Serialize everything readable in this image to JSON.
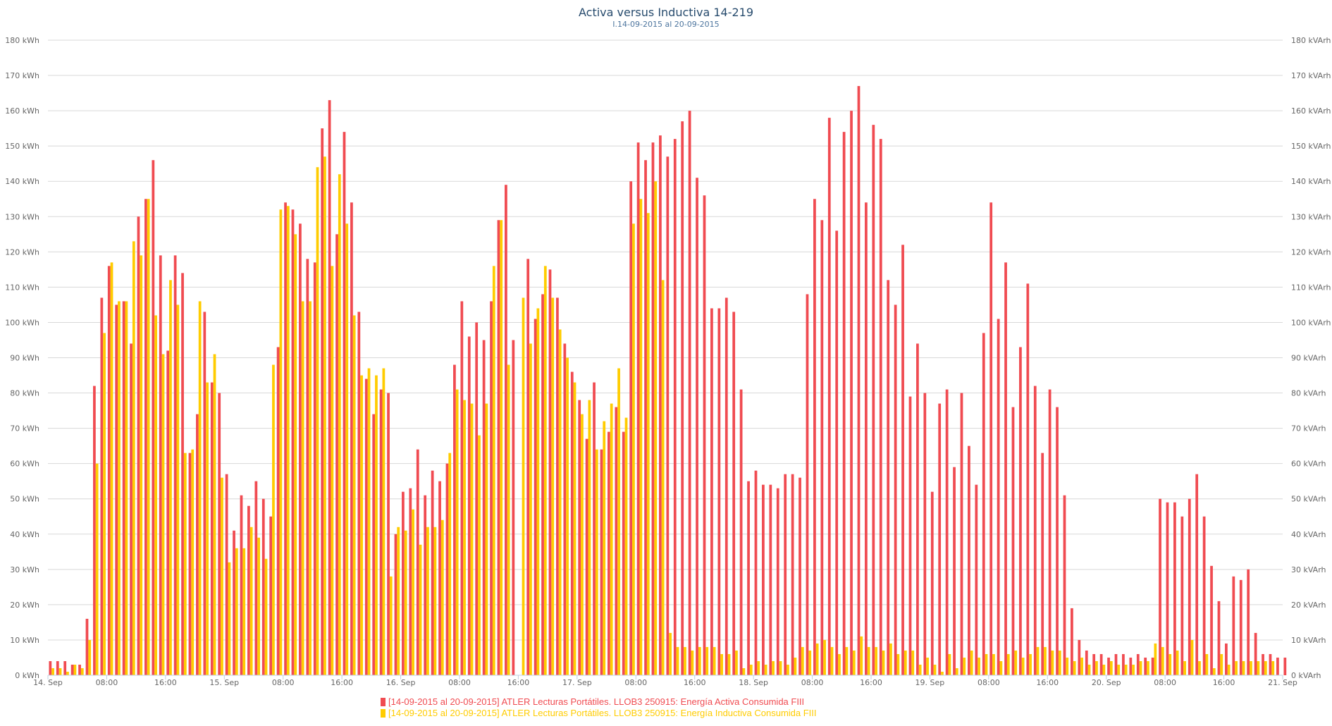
{
  "colors": {
    "active": "#f04b51",
    "inductive": "#ffcc00",
    "grid": "#d8d8d8",
    "axis_text": "#666666"
  },
  "chart_data": {
    "type": "bar",
    "title": "Activa versus Inductiva 14-219",
    "subtitle": "I.14-09-2015 al 20-09-2015",
    "y_left": {
      "ticks": [
        "0 kWh",
        "10 kWh",
        "20 kWh",
        "30 kWh",
        "40 kWh",
        "50 kWh",
        "60 kWh",
        "70 kWh",
        "80 kWh",
        "90 kWh",
        "100 kWh",
        "110 kWh",
        "120 kWh",
        "130 kWh",
        "140 kWh",
        "150 kWh",
        "160 kWh",
        "170 kWh",
        "180 kWh"
      ],
      "range": [
        0,
        180
      ]
    },
    "y_right": {
      "ticks": [
        "0 kVArh",
        "10 kVArh",
        "20 kVArh",
        "30 kVArh",
        "40 kVArh",
        "50 kVArh",
        "60 kVArh",
        "70 kVArh",
        "80 kVArh",
        "90 kVArh",
        "100 kVArh",
        "110 kVArh",
        "120 kVArh",
        "130 kVArh",
        "140 kVArh",
        "150 kVArh",
        "160 kVArh",
        "170 kVArh",
        "180 kVArh"
      ],
      "range": [
        0,
        180
      ]
    },
    "x_ticks": [
      "14. Sep",
      "08:00",
      "16:00",
      "15. Sep",
      "08:00",
      "16:00",
      "16. Sep",
      "08:00",
      "16:00",
      "17. Sep",
      "08:00",
      "16:00",
      "18. Sep",
      "08:00",
      "16:00",
      "19. Sep",
      "08:00",
      "16:00",
      "20. Sep",
      "08:00",
      "16:00",
      "21. Sep"
    ],
    "x_range_hours": [
      0,
      168
    ],
    "bar_interval_hours": 1,
    "grid": true,
    "legend_position": "bottom-center",
    "series": [
      {
        "name": "[14-09-2015 al 20-09-2015] ATLER Lecturas Portátiles. LLOB3 250915: Energía Activa Consumida FIII",
        "color": "#f04b51",
        "values": [
          4,
          4,
          4,
          3,
          3,
          16,
          82,
          107,
          116,
          105,
          106,
          94,
          130,
          135,
          146,
          119,
          92,
          119,
          114,
          63,
          74,
          103,
          83,
          80,
          57,
          41,
          51,
          48,
          55,
          50,
          45,
          93,
          134,
          132,
          128,
          118,
          117,
          155,
          163,
          125,
          154,
          134,
          103,
          84,
          74,
          81,
          80,
          40,
          52,
          53,
          64,
          51,
          58,
          55,
          60,
          88,
          106,
          96,
          100,
          95,
          106,
          129,
          139,
          95,
          null,
          118,
          101,
          108,
          115,
          107,
          94,
          86,
          78,
          67,
          83,
          64,
          69,
          76,
          69,
          140,
          151,
          146,
          151,
          153,
          147,
          152,
          157,
          160,
          141,
          136,
          104,
          104,
          107,
          103,
          81,
          55,
          58,
          54,
          54,
          53,
          57,
          57,
          56,
          108,
          135,
          129,
          158,
          126,
          154,
          160,
          167,
          134,
          156,
          152,
          112,
          105,
          122,
          79,
          94,
          80,
          52,
          77,
          81,
          59,
          80,
          65,
          54,
          97,
          134,
          101,
          117,
          76,
          93,
          111,
          82,
          63,
          81,
          76,
          51,
          19,
          10,
          7,
          6,
          6,
          5,
          6,
          6,
          5,
          6,
          5,
          5,
          50,
          49,
          49,
          45,
          50,
          57,
          45,
          31,
          21,
          9,
          28,
          27,
          30,
          12,
          6,
          6,
          5,
          5
        ]
      },
      {
        "name": "[14-09-2015 al 20-09-2015] ATLER Lecturas Portátiles. LLOB3 250915: Energía Inductiva Consumida FIII",
        "color": "#ffcc00",
        "values": [
          2,
          2,
          1,
          3,
          2,
          10,
          60,
          97,
          117,
          106,
          106,
          123,
          119,
          135,
          102,
          91,
          112,
          105,
          63,
          64,
          106,
          83,
          91,
          56,
          32,
          36,
          36,
          42,
          39,
          33,
          88,
          132,
          133,
          125,
          106,
          106,
          144,
          147,
          116,
          142,
          128,
          102,
          85,
          87,
          85,
          87,
          28,
          42,
          41,
          47,
          37,
          42,
          42,
          44,
          63,
          81,
          78,
          77,
          68,
          77,
          116,
          129,
          88,
          null,
          107,
          94,
          104,
          116,
          107,
          98,
          90,
          83,
          74,
          78,
          64,
          72,
          77,
          87,
          73,
          128,
          135,
          131,
          140,
          112,
          12,
          8,
          8,
          7,
          8,
          8,
          8,
          6,
          6,
          7,
          2,
          3,
          4,
          3,
          4,
          4,
          3,
          5,
          8,
          7,
          9,
          10,
          8,
          6,
          8,
          7,
          11,
          8,
          8,
          7,
          9,
          6,
          7,
          7,
          3,
          5,
          3,
          1,
          6,
          2,
          5,
          7,
          5,
          6,
          6,
          4,
          6,
          7,
          5,
          6,
          8,
          8,
          7,
          7,
          5,
          4,
          5,
          3,
          4,
          3,
          4,
          3,
          3,
          3,
          4,
          4,
          9,
          8,
          6,
          7,
          4,
          10,
          4,
          6,
          2,
          6,
          3,
          4,
          4,
          4,
          4,
          4,
          4
        ]
      }
    ]
  }
}
